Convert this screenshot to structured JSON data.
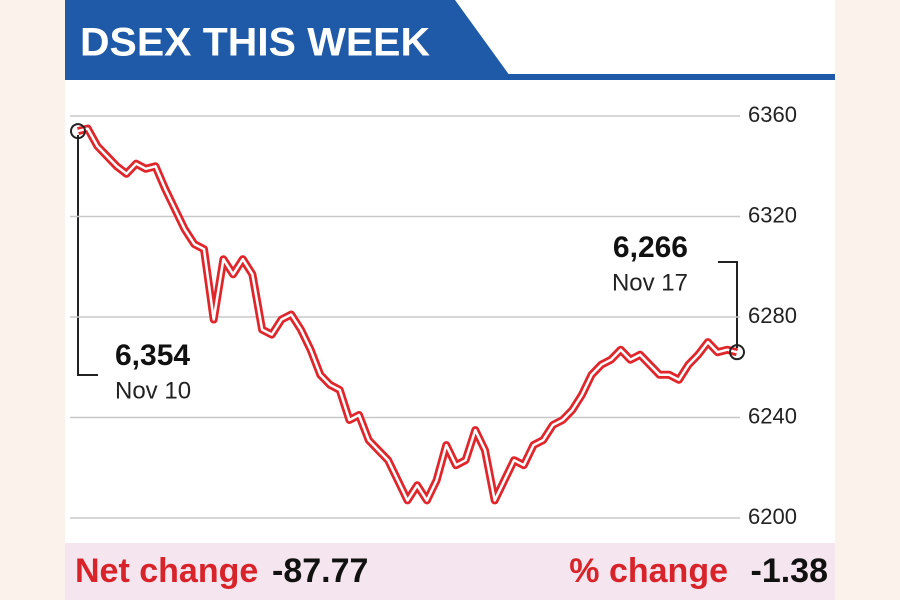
{
  "chart_data": {
    "type": "line",
    "title": "DSEX THIS WEEK",
    "series": [
      {
        "color": "#e0262b",
        "values": [
          6354,
          6355,
          6348,
          6344,
          6340,
          6337,
          6341,
          6339,
          6340,
          6331,
          6323,
          6315,
          6309,
          6307,
          6279,
          6303,
          6297,
          6303,
          6297,
          6275,
          6273,
          6279,
          6281,
          6275,
          6267,
          6257,
          6253,
          6251,
          6239,
          6241,
          6231,
          6227,
          6223,
          6215,
          6207,
          6213,
          6207,
          6215,
          6229,
          6221,
          6223,
          6235,
          6227,
          6207,
          6215,
          6223,
          6221,
          6229,
          6231,
          6237,
          6239,
          6243,
          6249,
          6257,
          6261,
          6263,
          6267,
          6263,
          6265,
          6261,
          6257,
          6257,
          6255,
          6261,
          6265,
          6270,
          6266,
          6267,
          6266
        ]
      }
    ],
    "ylim": [
      6200,
      6360
    ],
    "yticks": [
      6200,
      6240,
      6280,
      6320,
      6360
    ],
    "grid": true,
    "annotations": [
      {
        "value": 6354,
        "label": "6,354",
        "date": "Nov 10"
      },
      {
        "value": 6266,
        "label": "6,266",
        "date": "Nov 17"
      }
    ],
    "footer": {
      "net_change_label": "Net change",
      "net_change": -87.77,
      "pct_change_label": "% change",
      "pct_change": -1.38
    }
  }
}
